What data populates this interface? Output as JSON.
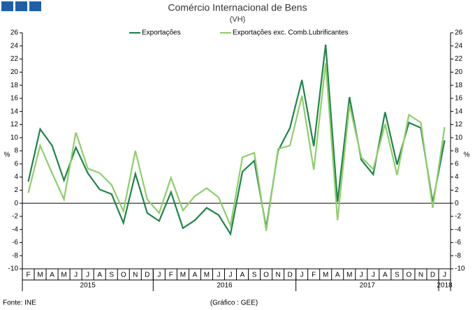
{
  "chart_data": {
    "type": "line",
    "title": "Comércio Internacional de Bens",
    "subtitle": "(VH)",
    "ylabel": "%",
    "y2label": "%",
    "categories": [
      "F",
      "M",
      "A",
      "M",
      "J",
      "J",
      "A",
      "S",
      "O",
      "N",
      "D",
      "J",
      "F",
      "M",
      "A",
      "M",
      "J",
      "J",
      "A",
      "S",
      "O",
      "N",
      "D",
      "J",
      "F",
      "M",
      "A",
      "M",
      "J",
      "J",
      "A",
      "S",
      "O",
      "N",
      "D",
      "J"
    ],
    "year_labels": [
      "2015",
      "2016",
      "2017",
      "2018"
    ],
    "series": [
      {
        "name": "Exportações",
        "color": "#1e8449",
        "values": [
          3.3,
          11.3,
          8.8,
          3.5,
          8.5,
          4.6,
          2.1,
          1.4,
          -3.0,
          4.5,
          -1.5,
          -2.7,
          1.7,
          -3.8,
          -2.6,
          -0.7,
          -1.8,
          -4.7,
          4.8,
          6.5,
          -3.7,
          8.0,
          11.5,
          18.8,
          8.7,
          24.2,
          0.2,
          16.2,
          6.6,
          4.4,
          13.9,
          5.9,
          12.3,
          11.5,
          0.1,
          9.6
        ]
      },
      {
        "name": "Exportações exc. Comb.Lubrificantes",
        "color": "#8fce6a",
        "values": [
          1.6,
          8.8,
          4.6,
          0.6,
          10.8,
          5.3,
          4.6,
          2.8,
          -1.2,
          8.0,
          0.6,
          -1.5,
          3.9,
          -1.1,
          1.1,
          2.3,
          0.9,
          -3.4,
          7.0,
          7.7,
          -4.2,
          8.3,
          8.8,
          16.4,
          5.1,
          21.4,
          -2.6,
          15.0,
          7.0,
          5.2,
          12.1,
          4.3,
          13.5,
          12.3,
          -0.7,
          11.6
        ]
      }
    ],
    "ylim": [
      -10,
      26
    ],
    "yticks": [
      -10,
      -8,
      -6,
      -4,
      -2,
      0,
      2,
      4,
      6,
      8,
      10,
      12,
      14,
      16,
      18,
      20,
      22,
      24,
      26
    ],
    "y2lim": [
      -10,
      26
    ],
    "y2ticks": [
      -10,
      -8,
      -6,
      -4,
      -2,
      0,
      2,
      4,
      6,
      8,
      10,
      12,
      14,
      16,
      18,
      20,
      22,
      24,
      26
    ],
    "legend": "top",
    "source": "Fonte: INE",
    "credit": "(Gráfico : GEE)"
  }
}
